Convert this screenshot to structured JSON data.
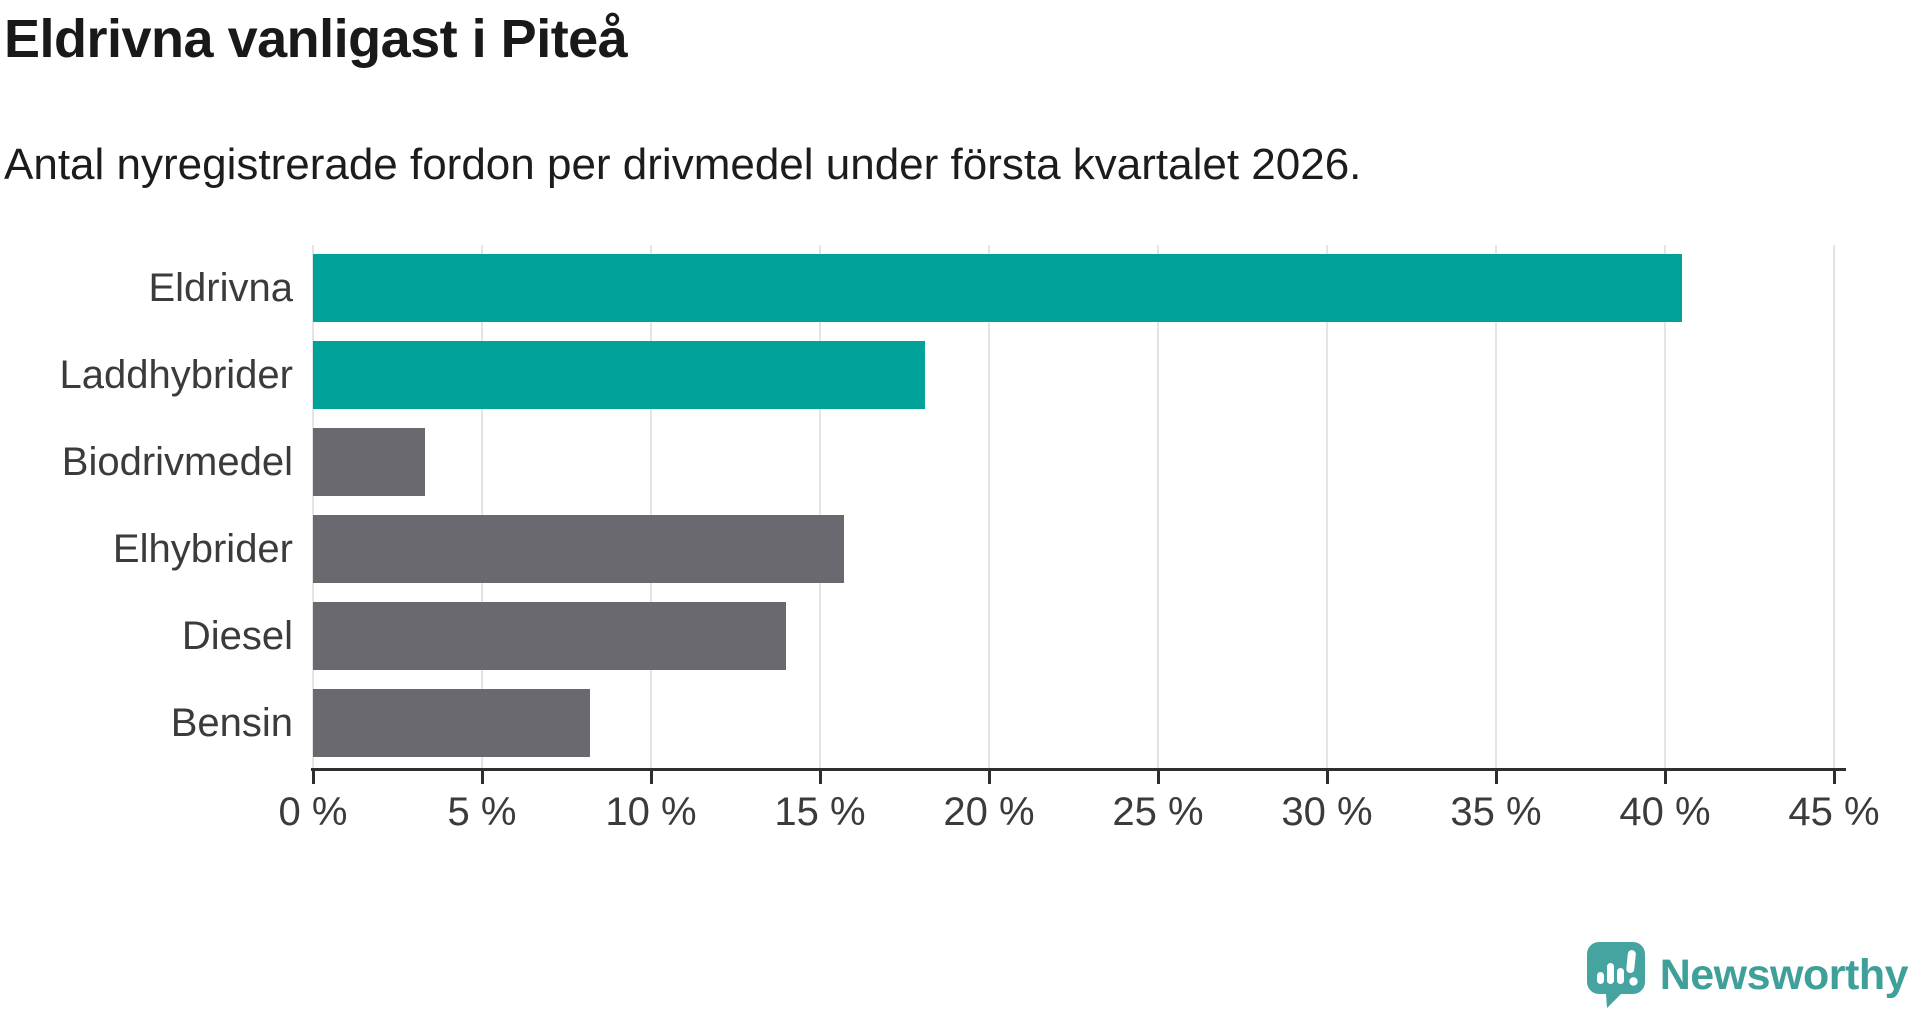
{
  "header": {
    "title": "Eldrivna vanligast i Piteå",
    "subtitle": "Antal nyregistrerade fordon per drivmedel under första kvartalet 2026."
  },
  "chart_data": {
    "type": "bar",
    "orientation": "horizontal",
    "title": "Eldrivna vanligast i Piteå",
    "subtitle": "Antal nyregistrerade fordon per drivmedel under första kvartalet 2026.",
    "categories": [
      "Eldrivna",
      "Laddhybrider",
      "Biodrivmedel",
      "Elhybrider",
      "Diesel",
      "Bensin"
    ],
    "values": [
      40.5,
      18.1,
      3.3,
      15.7,
      14,
      8.2
    ],
    "unit": "%",
    "xlabel": "",
    "ylabel": "",
    "xlim": [
      0,
      45
    ],
    "x_tick_step": 5,
    "x_tick_labels": [
      "0 %",
      "5 %",
      "10 %",
      "15 %",
      "20 %",
      "25 %",
      "30 %",
      "35 %",
      "40 %",
      "45 %"
    ],
    "grid": true,
    "legend": false,
    "bar_colors": [
      "#00a29a",
      "#00a29a",
      "#6a6970",
      "#6a6970",
      "#6a6970",
      "#6a6970"
    ],
    "highlight_color": "#00a29a",
    "default_color": "#6a6970",
    "gridline_color": "#e4e4e4",
    "axis_color": "#2e2e2e",
    "label_color": "#3b3b3b"
  },
  "branding": {
    "logo_text": "Newsworthy",
    "logo_color": "#3fa099"
  }
}
